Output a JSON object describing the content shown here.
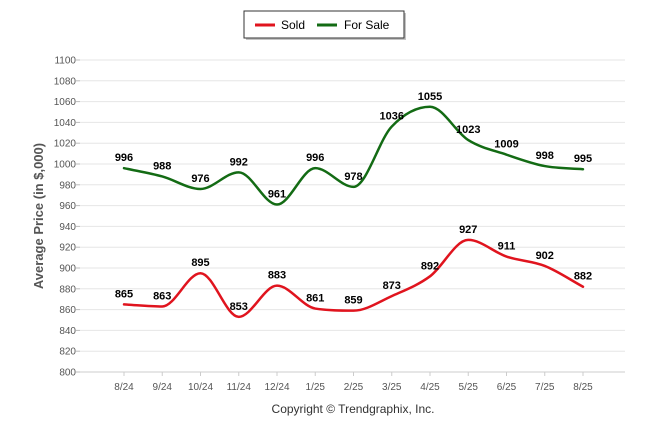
{
  "chart_data": {
    "type": "line",
    "categories": [
      "8/24",
      "9/24",
      "10/24",
      "11/24",
      "12/24",
      "1/25",
      "2/25",
      "3/25",
      "4/25",
      "5/25",
      "6/25",
      "7/25",
      "8/25"
    ],
    "series": [
      {
        "name": "Sold",
        "color": "#e0141e",
        "values": [
          865,
          863,
          895,
          853,
          883,
          861,
          859,
          873,
          892,
          927,
          911,
          902,
          882
        ]
      },
      {
        "name": "For Sale",
        "color": "#136b14",
        "values": [
          996,
          988,
          976,
          992,
          961,
          996,
          978,
          1036,
          1055,
          1023,
          1009,
          998,
          995
        ]
      }
    ],
    "ylabel": "Average Price (in $,000)",
    "xlabel": "",
    "ylim": [
      800,
      1100
    ],
    "yticks": [
      800,
      820,
      840,
      860,
      880,
      900,
      920,
      940,
      960,
      980,
      1000,
      1020,
      1040,
      1060,
      1080,
      1100
    ],
    "grid": true,
    "legend": "top-center"
  },
  "footer": {
    "copyright": "Copyright © Trendgraphix, Inc."
  }
}
